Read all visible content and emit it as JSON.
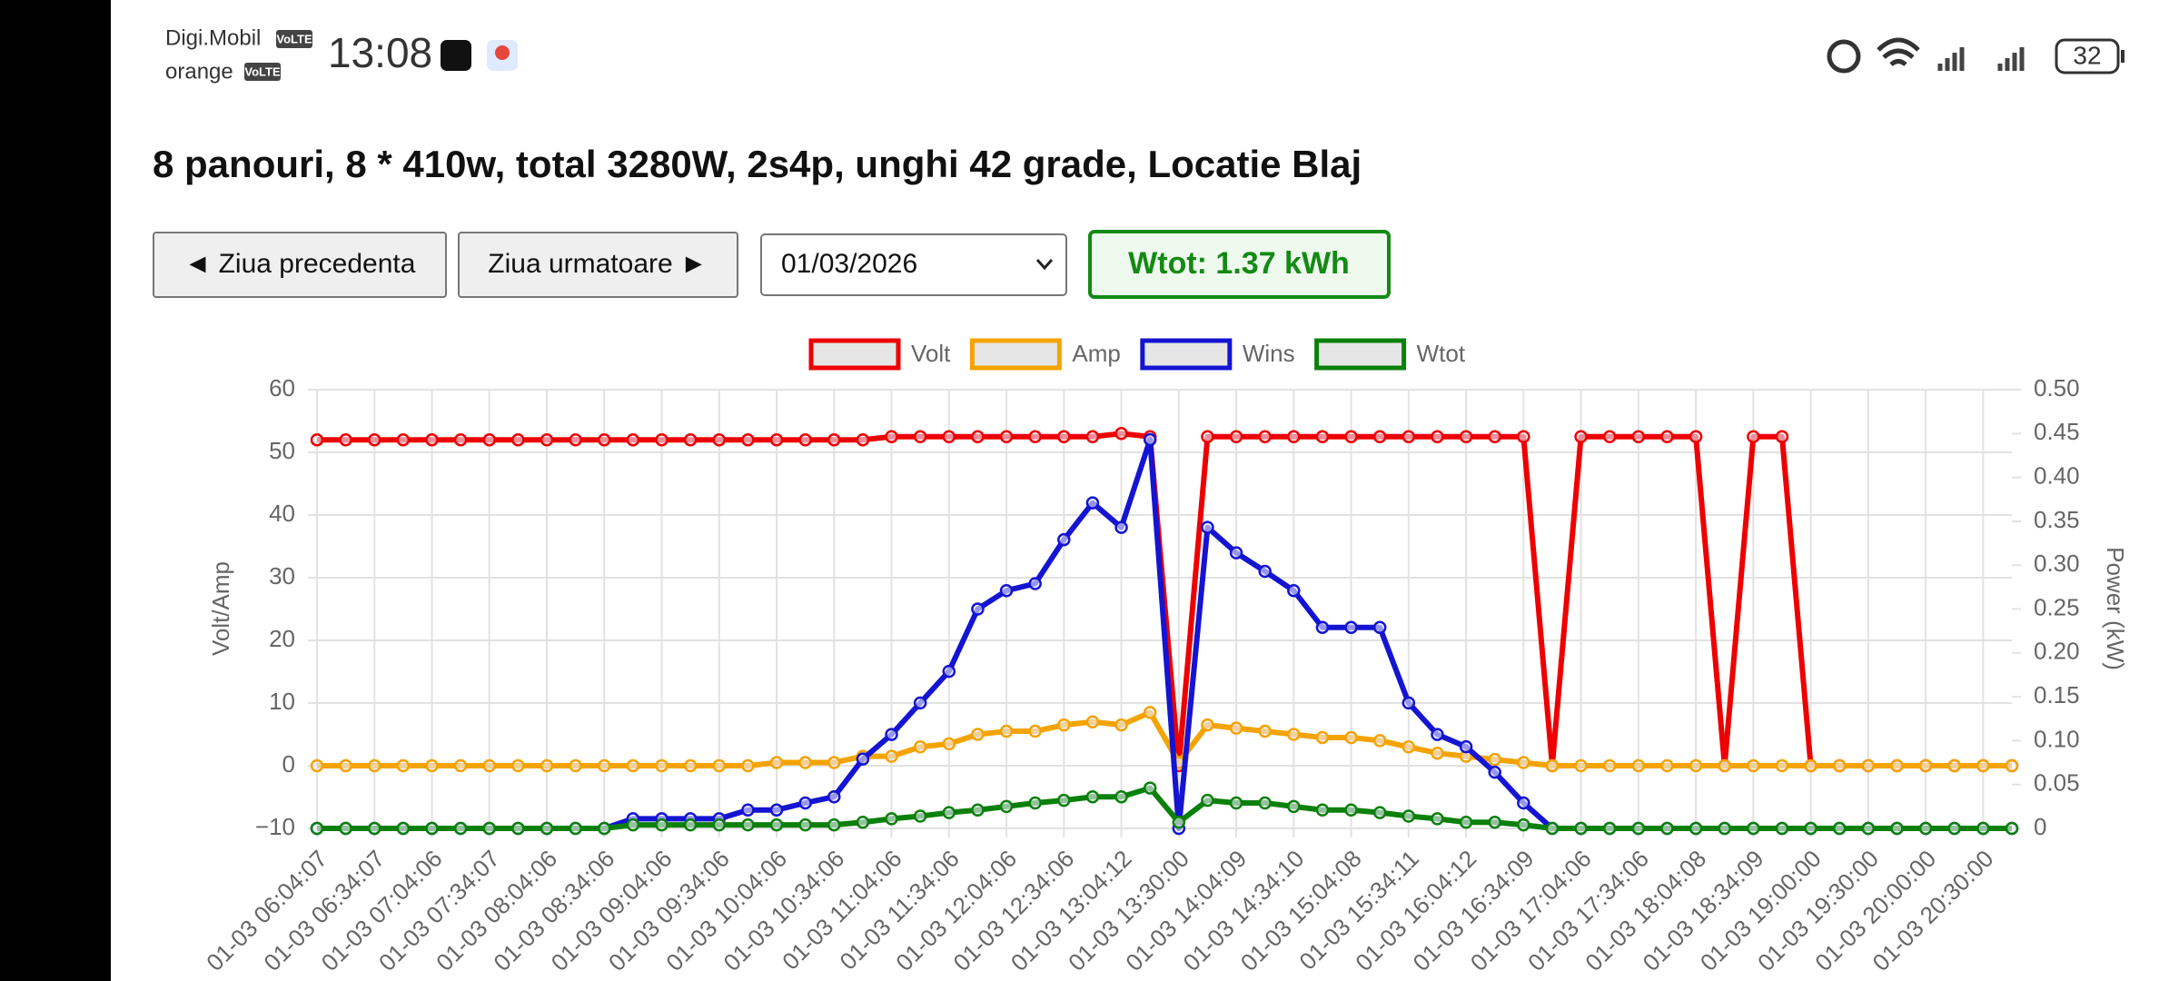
{
  "status": {
    "carrier1": "Digi.Mobil",
    "carrier2": "orange",
    "volte": "VoLTE",
    "time": "13:08",
    "battery": "32"
  },
  "header": {
    "title": "8 panouri, 8 * 410w, total 3280W, 2s4p, unghi 42 grade, Locatie Blaj"
  },
  "controls": {
    "prev": "◄ Ziua precedenta",
    "next": "Ziua urmatoare ►",
    "date": "01/03/2026",
    "wtot": "Wtot: 1.37 kWh"
  },
  "chart_data": {
    "type": "line",
    "ylabel": "Volt/Amp",
    "y2label": "Power (kW)",
    "legend": "top",
    "grid": true,
    "categories": [
      "01-03 06:04:07",
      null,
      "01-03 06:34:07",
      null,
      "01-03 07:04:06",
      null,
      "01-03 07:34:07",
      null,
      "01-03 08:04:06",
      null,
      "01-03 08:34:06",
      null,
      "01-03 09:04:06",
      null,
      "01-03 09:34:06",
      null,
      "01-03 10:04:06",
      null,
      "01-03 10:34:06",
      null,
      "01-03 11:04:06",
      null,
      "01-03 11:34:06",
      null,
      "01-03 12:04:06",
      null,
      "01-03 12:34:06",
      null,
      "01-03 13:04:12",
      null,
      "01-03 13:30:00",
      null,
      "01-03 14:04:09",
      null,
      "01-03 14:34:10",
      null,
      "01-03 15:04:08",
      null,
      "01-03 15:34:11",
      null,
      "01-03 16:04:12",
      null,
      "01-03 16:34:09",
      null,
      "01-03 17:04:06",
      null,
      "01-03 17:34:06",
      null,
      "01-03 18:04:08",
      null,
      "01-03 18:34:09",
      null,
      "01-03 19:00:00",
      null,
      "01-03 19:30:00",
      null,
      "01-03 20:00:00",
      null,
      "01-03 20:30:00",
      null
    ],
    "ylim": [
      -10,
      60
    ],
    "yticks": [
      {
        "value": -10,
        "label": "−10"
      },
      0,
      10,
      20,
      30,
      40,
      50,
      60
    ],
    "y2lim": [
      0,
      0.5
    ],
    "y2ticks": [
      0,
      0.05,
      {
        "value": 0.1,
        "label": "0.10"
      },
      0.15,
      {
        "value": 0.2,
        "label": "0.20"
      },
      0.25,
      {
        "value": 0.3,
        "label": "0.30"
      },
      0.35,
      {
        "value": 0.4,
        "label": "0.40"
      },
      0.45,
      {
        "value": 0.5,
        "label": "0.50"
      }
    ],
    "series": [
      {
        "name": "Volt",
        "color": "#ee0000",
        "axis": "y",
        "values": [
          52,
          52,
          52,
          52,
          52,
          52,
          52,
          52,
          52,
          52,
          52,
          52,
          52,
          52,
          52,
          52,
          52,
          52,
          52,
          52,
          52.5,
          52.5,
          52.5,
          52.5,
          52.5,
          52.5,
          52.5,
          52.5,
          53,
          52.5,
          0,
          52.5,
          52.5,
          52.5,
          52.5,
          52.5,
          52.5,
          52.5,
          52.5,
          52.5,
          52.5,
          52.5,
          52.5,
          0,
          52.5,
          52.5,
          52.5,
          52.5,
          52.5,
          0,
          52.5,
          52.5,
          0,
          0,
          0,
          0,
          0,
          0,
          0,
          0
        ]
      },
      {
        "name": "Amp",
        "color": "#f5a300",
        "axis": "y",
        "values": [
          0,
          0,
          0,
          0,
          0,
          0,
          0,
          0,
          0,
          0,
          0,
          0,
          0,
          0,
          0,
          0,
          0.5,
          0.5,
          0.5,
          1.5,
          1.5,
          3,
          3.5,
          5,
          5.5,
          5.5,
          6.5,
          7,
          6.5,
          8.5,
          0.5,
          6.5,
          6,
          5.5,
          5,
          4.5,
          4.5,
          4,
          3,
          2,
          1.5,
          1,
          0.5,
          0,
          0,
          0,
          0,
          0,
          0,
          0,
          0,
          0,
          0,
          0,
          0,
          0,
          0,
          0,
          0,
          0
        ]
      },
      {
        "name": "Wins",
        "color": "#1414d2",
        "axis": "y2",
        "values": [
          0,
          0,
          0,
          0,
          0,
          0,
          0,
          0,
          0,
          0,
          0,
          0.011,
          0.011,
          0.011,
          0.011,
          0.021,
          0.021,
          0.029,
          0.036,
          0.079,
          0.107,
          0.143,
          0.179,
          0.25,
          0.271,
          0.279,
          0.329,
          0.371,
          0.343,
          0.443,
          0,
          0.343,
          0.314,
          0.293,
          0.271,
          0.229,
          0.229,
          0.229,
          0.143,
          0.107,
          0.093,
          0.064,
          0.029,
          0,
          0,
          0,
          0,
          0,
          0,
          0,
          0,
          0,
          0,
          0,
          0,
          0,
          0,
          0,
          0,
          0
        ]
      },
      {
        "name": "Wtot",
        "color": "#0b800b",
        "axis": "y2",
        "values": [
          0,
          0,
          0,
          0,
          0,
          0,
          0,
          0,
          0,
          0,
          0,
          0.004,
          0.004,
          0.004,
          0.004,
          0.004,
          0.004,
          0.004,
          0.004,
          0.007,
          0.011,
          0.014,
          0.018,
          0.021,
          0.025,
          0.029,
          0.032,
          0.036,
          0.036,
          0.046,
          0.007,
          0.032,
          0.029,
          0.029,
          0.025,
          0.021,
          0.021,
          0.018,
          0.014,
          0.011,
          0.007,
          0.007,
          0.004,
          0,
          0,
          0,
          0,
          0,
          0,
          0,
          0,
          0,
          0,
          0,
          0,
          0,
          0,
          0,
          0,
          0
        ]
      }
    ]
  }
}
